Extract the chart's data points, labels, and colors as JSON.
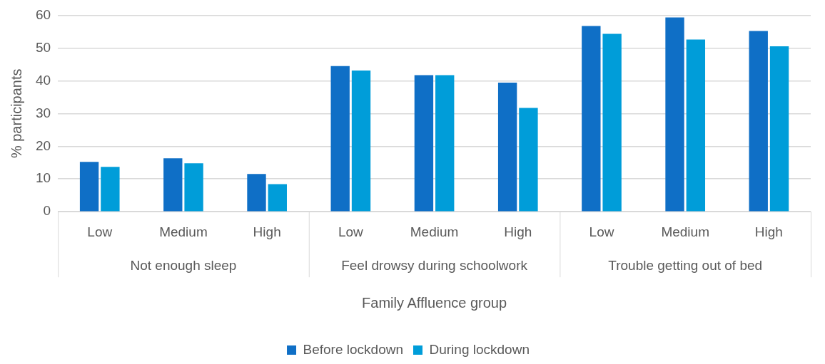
{
  "chart_data": {
    "type": "bar",
    "xlabel": "Family Affluence group",
    "ylabel": "% participants",
    "categories": [
      "Low",
      "Medium",
      "High",
      "Low",
      "Medium",
      "High",
      "Low",
      "Medium",
      "High"
    ],
    "annotations": [
      "Not enough sleep",
      "Feel drowsy during schoolwork",
      "Trouble getting out of bed"
    ],
    "series": [
      {
        "name": "Before lockdown",
        "color": "#0f6fc6",
        "values": [
          15.2,
          16.3,
          11.5,
          44.5,
          41.7,
          39.4,
          56.7,
          59.3,
          55.2
        ]
      },
      {
        "name": "During lockdown",
        "color": "#009dd9",
        "values": [
          13.7,
          14.8,
          8.4,
          43.1,
          41.7,
          31.7,
          54.3,
          52.6,
          50.5
        ]
      }
    ],
    "ylim": [
      0,
      60
    ],
    "yticks": [
      0,
      10,
      20,
      30,
      40,
      50,
      60
    ],
    "grid": "y",
    "legend": "bottom"
  }
}
